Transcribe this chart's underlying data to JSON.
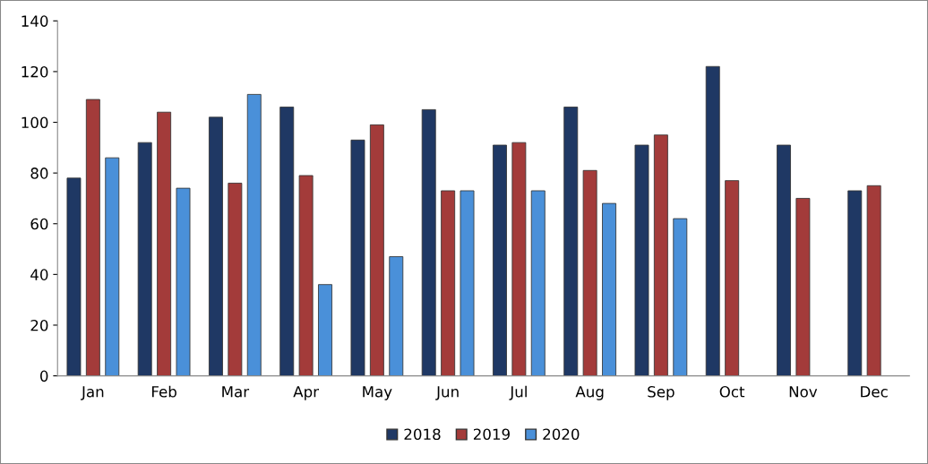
{
  "chart_data": {
    "type": "bar",
    "categories": [
      "Jan",
      "Feb",
      "Mar",
      "Apr",
      "May",
      "Jun",
      "Jul",
      "Aug",
      "Sep",
      "Oct",
      "Nov",
      "Dec"
    ],
    "series": [
      {
        "name": "2018",
        "color": "#1f3864",
        "values": [
          78,
          92,
          102,
          106,
          93,
          105,
          91,
          106,
          91,
          122,
          91,
          73
        ]
      },
      {
        "name": "2019",
        "color": "#a33b3a",
        "values": [
          109,
          104,
          76,
          79,
          99,
          73,
          92,
          81,
          95,
          77,
          70,
          75
        ]
      },
      {
        "name": "2020",
        "color": "#4a90d9",
        "values": [
          86,
          74,
          111,
          36,
          47,
          73,
          73,
          68,
          62,
          null,
          null,
          null
        ]
      }
    ],
    "ylim": [
      0,
      140
    ],
    "yticks": [
      0,
      20,
      40,
      60,
      80,
      100,
      120,
      140
    ],
    "grid": false,
    "legend": "bottom"
  }
}
